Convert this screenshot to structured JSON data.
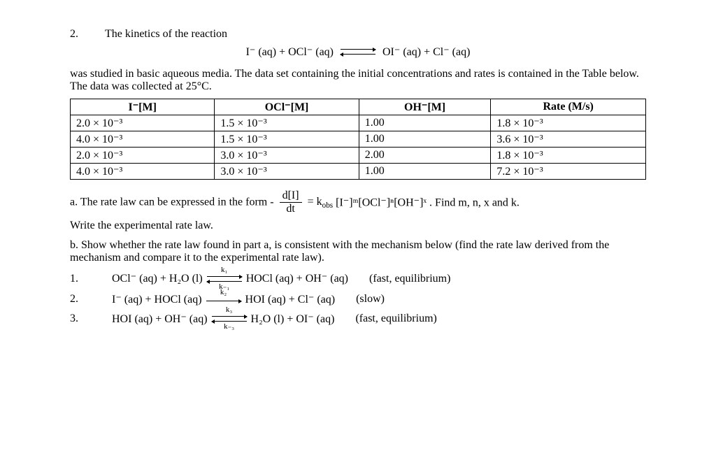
{
  "problem": {
    "number": "2.",
    "title": "The kinetics of the reaction",
    "main_equation": {
      "left": "I⁻ (aq)   +   OCl⁻ (aq)",
      "right": "OI⁻ (aq)   +   Cl⁻ (aq)"
    },
    "intro_para": "was studied in basic aqueous media.  The data set containing the initial concentrations and rates is contained in the Table below.  The data was collected at 25°C."
  },
  "table": {
    "headers": [
      "I⁻[M]",
      "OCl⁻[M]",
      "OH⁻[M]",
      "Rate (M/s)"
    ],
    "rows": [
      [
        "2.0 × 10⁻³",
        "1.5 × 10⁻³",
        "1.00",
        "1.8 × 10⁻³"
      ],
      [
        "4.0 × 10⁻³",
        "1.5 × 10⁻³",
        "1.00",
        "3.6 × 10⁻³"
      ],
      [
        "2.0 × 10⁻³",
        "3.0 × 10⁻³",
        "2.00",
        "1.8 × 10⁻³"
      ],
      [
        "4.0 × 10⁻³",
        "3.0 × 10⁻³",
        "1.00",
        "7.2 × 10⁻³"
      ]
    ]
  },
  "part_a": {
    "lead": "a.  The rate law can be expressed in the form ",
    "frac_minus": " - ",
    "frac_num": "d[I]",
    "frac_den": "dt",
    "equals": " = k",
    "k_sub": "obs",
    "tail_expr": "[I⁻]ᵐ[OCl⁻]ⁿ[OH⁻]ˣ .  Find m, n, x and k.",
    "line2": "Write the experimental rate law."
  },
  "part_b": {
    "text": "b.  Show whether the rate law found in part a, is consistent with the mechanism below (find the rate law derived from the mechanism and compare it to the experimental rate law)."
  },
  "mechanism": [
    {
      "num": "1.",
      "left": "OCl⁻ (aq)   +   H₂O (l)",
      "arrow": "eq",
      "k_top": "k₁",
      "k_bot": "k₋₁",
      "right": "HOCl (aq)   +   OH⁻ (aq)",
      "note": "(fast, equilibrium)"
    },
    {
      "num": "2.",
      "left": "I⁻ (aq)   +    HOCl (aq)",
      "arrow": "fwd",
      "k_top": "k₂",
      "k_bot": "",
      "right": "HOI (aq)   +    Cl⁻ (aq)",
      "note": "(slow)"
    },
    {
      "num": "3.",
      "left": "HOI (aq)   +   OH⁻ (aq)",
      "arrow": "eq",
      "k_top": "k₃",
      "k_bot": "k₋₃",
      "right": "H₂O (l)   +   OI⁻ (aq)",
      "note": "(fast, equilibrium)"
    }
  ]
}
